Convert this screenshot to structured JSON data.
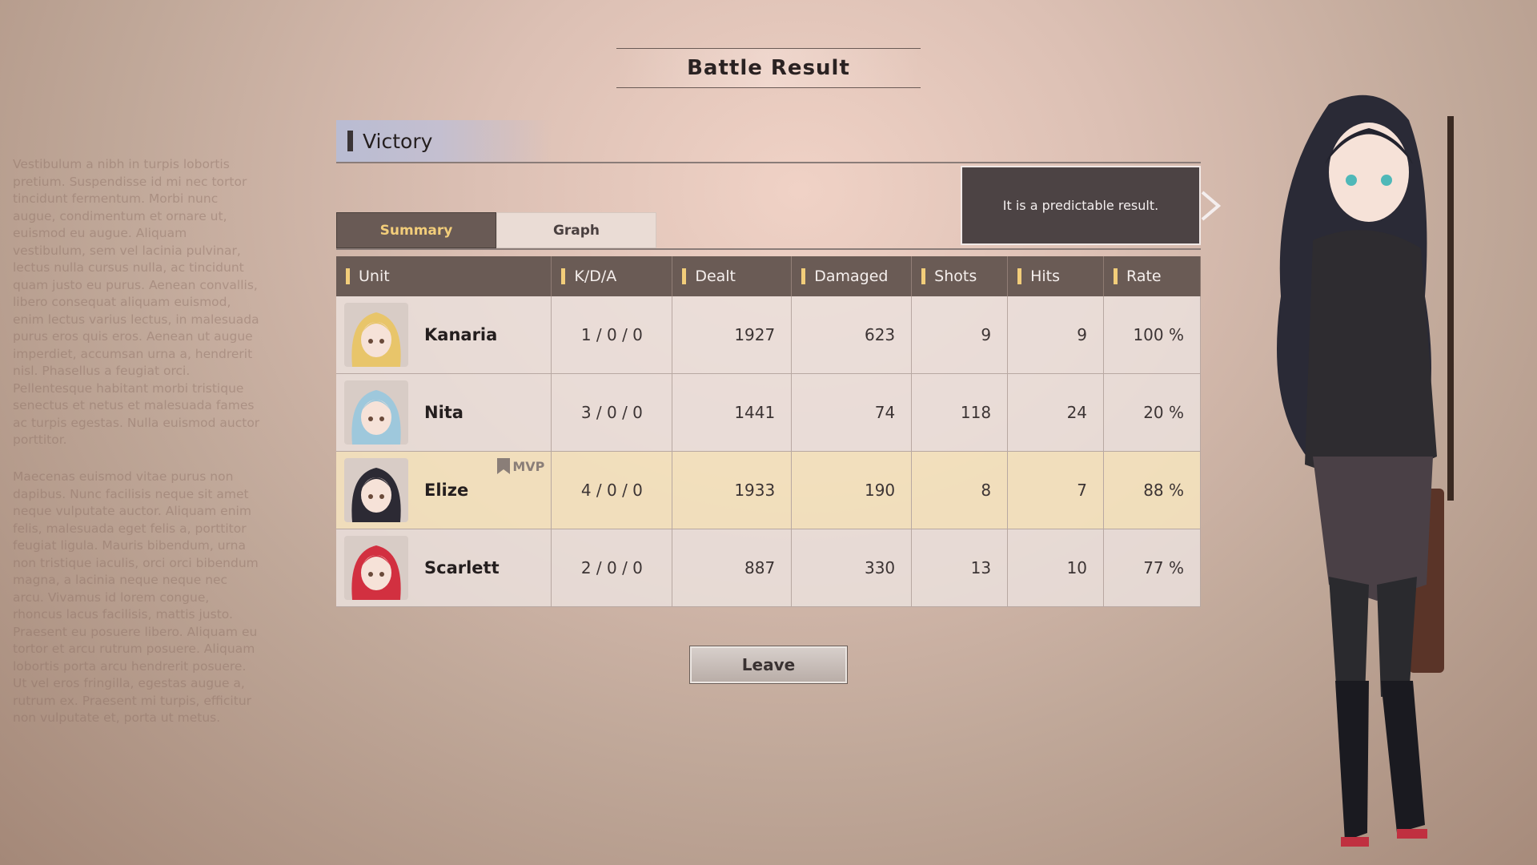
{
  "title": "Battle Result",
  "result": "Victory",
  "tabs": [
    {
      "label": "Summary",
      "active": true
    },
    {
      "label": "Graph",
      "active": false
    }
  ],
  "message": "It is a predictable result.",
  "columns": [
    "Unit",
    "K/D/A",
    "Dealt",
    "Damaged",
    "Shots",
    "Hits",
    "Rate"
  ],
  "rows": [
    {
      "unit": "Kanaria",
      "kda": "1 / 0 / 0",
      "dealt": "1927",
      "damaged": "623",
      "shots": "9",
      "hits": "9",
      "rate": "100 %",
      "hair": "#e8c56a"
    },
    {
      "unit": "Nita",
      "kda": "3 / 0 / 0",
      "dealt": "1441",
      "damaged": "74",
      "shots": "118",
      "hits": "24",
      "rate": "20 %",
      "hair": "#9ec8dc"
    },
    {
      "unit": "Elize",
      "kda": "4 / 0 / 0",
      "dealt": "1933",
      "damaged": "190",
      "shots": "8",
      "hits": "7",
      "rate": "88 %",
      "hair": "#2c2a34",
      "mvp": "MVP"
    },
    {
      "unit": "Scarlett",
      "kda": "2 / 0 / 0",
      "dealt": "887",
      "damaged": "330",
      "shots": "13",
      "hits": "10",
      "rate": "77 %",
      "hair": "#d23040"
    }
  ],
  "leave_label": "Leave",
  "lore": [
    "Vestibulum a nibh in turpis lobortis pretium. Suspendisse id mi nec tortor tincidunt fermentum. Morbi nunc augue, condimentum et ornare ut, euismod eu augue. Aliquam vestibulum, sem vel lacinia pulvinar, lectus nulla cursus nulla, ac tincidunt quam justo eu purus. Aenean convallis, libero consequat aliquam euismod, enim lectus varius lectus, in malesuada purus eros quis eros. Aenean ut augue imperdiet, accumsan urna a, hendrerit nisl. Phasellus a feugiat orci. Pellentesque habitant morbi tristique senectus et netus et malesuada fames ac turpis egestas. Nulla euismod auctor porttitor.",
    "Maecenas euismod vitae purus non dapibus. Nunc facilisis neque sit amet neque vulputate auctor. Aliquam enim felis, malesuada eget felis a, porttitor feugiat ligula. Mauris bibendum, urna non tristique iaculis, orci orci bibendum magna, a lacinia neque neque nec arcu. Vivamus id lorem congue, rhoncus lacus facilisis, mattis justo. Praesent eu posuere libero. Aliquam eu tortor et arcu rutrum posuere. Aliquam lobortis porta arcu hendrerit posuere. Ut vel eros fringilla, egestas augue a, rutrum ex. Praesent mi turpis, efficitur non vulputate et, porta ut metus."
  ],
  "colors": {
    "accent": "#f2cd7a",
    "header": "#6a5b55",
    "mvp_row": "#f4e2be"
  }
}
